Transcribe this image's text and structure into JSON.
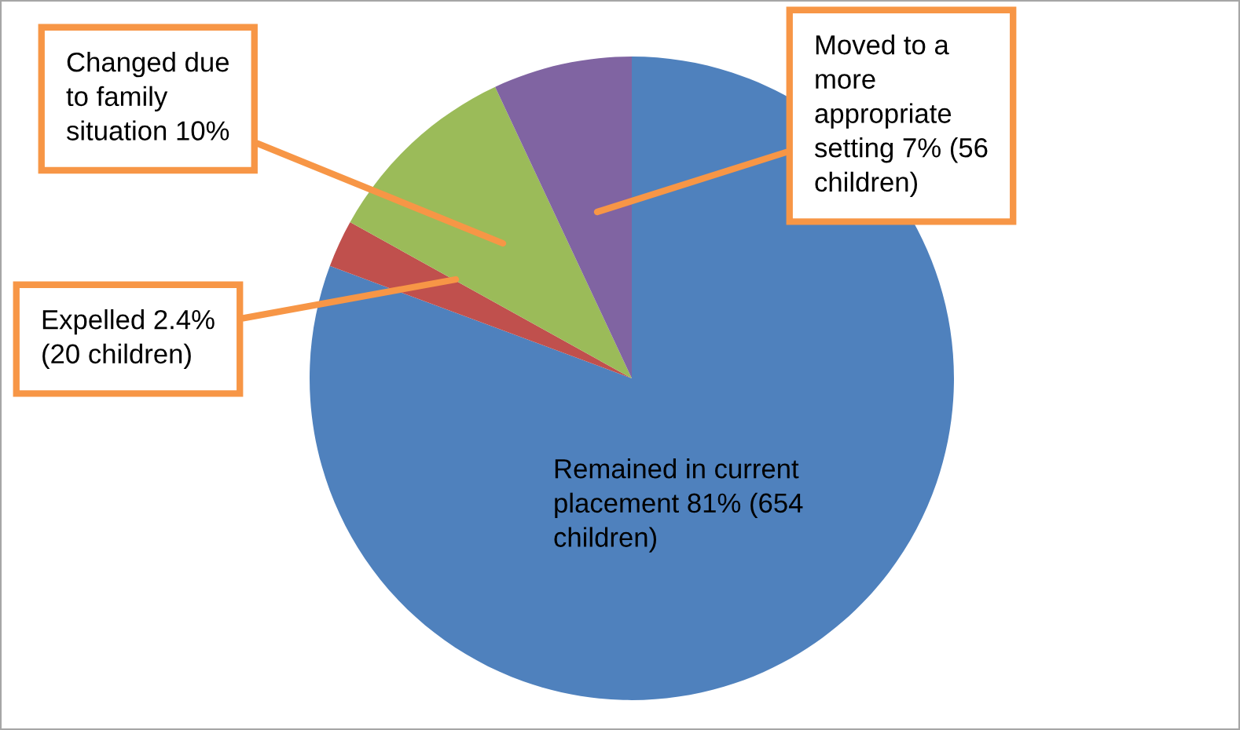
{
  "chart_data": {
    "type": "pie",
    "categories": [
      "Remained in current placement 81% (654 children)",
      "Expelled 2.4% (20 children)",
      "Changed due to family situation 10%",
      "Moved to a more appropriate setting 7% (56 children)"
    ],
    "values": [
      81,
      2.4,
      10,
      7
    ],
    "colors": [
      "#4f81bd",
      "#c0504d",
      "#9bbb59",
      "#8064a2"
    ]
  }
}
